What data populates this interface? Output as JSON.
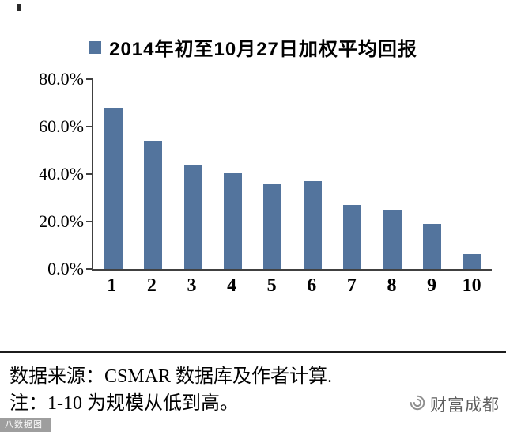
{
  "chart_data": {
    "type": "bar",
    "title": "2014年初至10月27日加权平均回报",
    "legend_position": "top",
    "categories": [
      "1",
      "2",
      "3",
      "4",
      "5",
      "6",
      "7",
      "8",
      "9",
      "10"
    ],
    "values": [
      68,
      54,
      44,
      40.5,
      36,
      37,
      27,
      25,
      19,
      6.5
    ],
    "ylim": [
      0,
      80
    ],
    "yticks": [
      {
        "value": 80,
        "label": "80.0%"
      },
      {
        "value": 60,
        "label": "60.0%"
      },
      {
        "value": 40,
        "label": "40.0%"
      },
      {
        "value": 20,
        "label": "20.0%"
      },
      {
        "value": 0,
        "label": "0.0%"
      }
    ],
    "bar_color": "#53749D",
    "axis_color": "#404040",
    "grid": false,
    "xlabel": "",
    "ylabel": ""
  },
  "footer": {
    "source_line": "数据来源：CSMAR 数据库及作者计算.",
    "note_line": "注：1-10 为规模从低到高。",
    "brand_label": "财富成都",
    "watermark": "八数据图"
  }
}
